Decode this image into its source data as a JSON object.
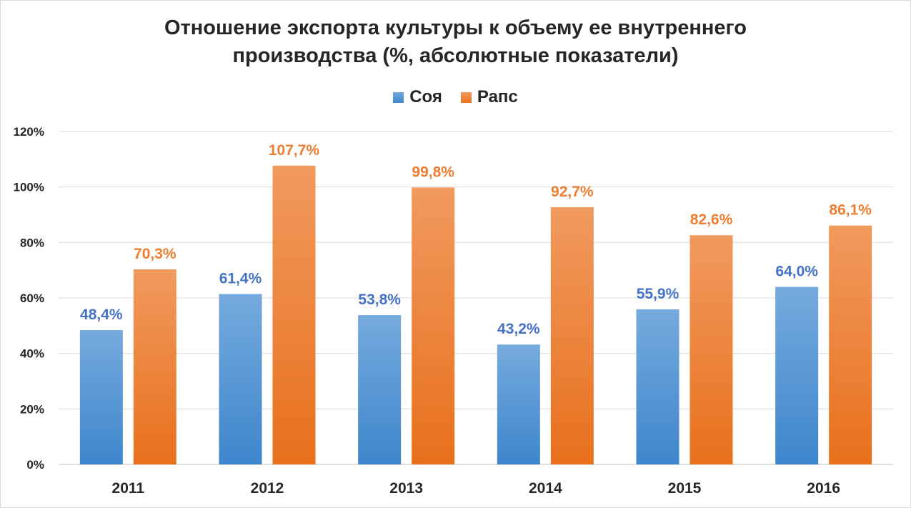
{
  "chart_data": {
    "type": "bar",
    "title_lines": [
      "Отношение экспорта культуры к объему ее внутреннего",
      "производства (%, абсолютные показатели)"
    ],
    "categories": [
      "2011",
      "2012",
      "2013",
      "2014",
      "2015",
      "2016"
    ],
    "series": [
      {
        "name": "Соя",
        "values": [
          48.4,
          61.4,
          53.8,
          43.2,
          55.9,
          64.0
        ],
        "labels": [
          "48,4%",
          "61,4%",
          "53,8%",
          "43,2%",
          "55,9%",
          "64,0%"
        ],
        "color": "#5b9bd5"
      },
      {
        "name": "Рапс",
        "values": [
          70.3,
          107.7,
          99.8,
          92.7,
          82.6,
          86.1
        ],
        "labels": [
          "70,3%",
          "107,7%",
          "99,8%",
          "92,7%",
          "82,6%",
          "86,1%"
        ],
        "color": "#ed7d31"
      }
    ],
    "yticks": [
      "0%",
      "20%",
      "40%",
      "60%",
      "80%",
      "100%",
      "120%"
    ],
    "ylim": [
      0,
      120
    ],
    "grid": true,
    "legend": "top-center"
  }
}
